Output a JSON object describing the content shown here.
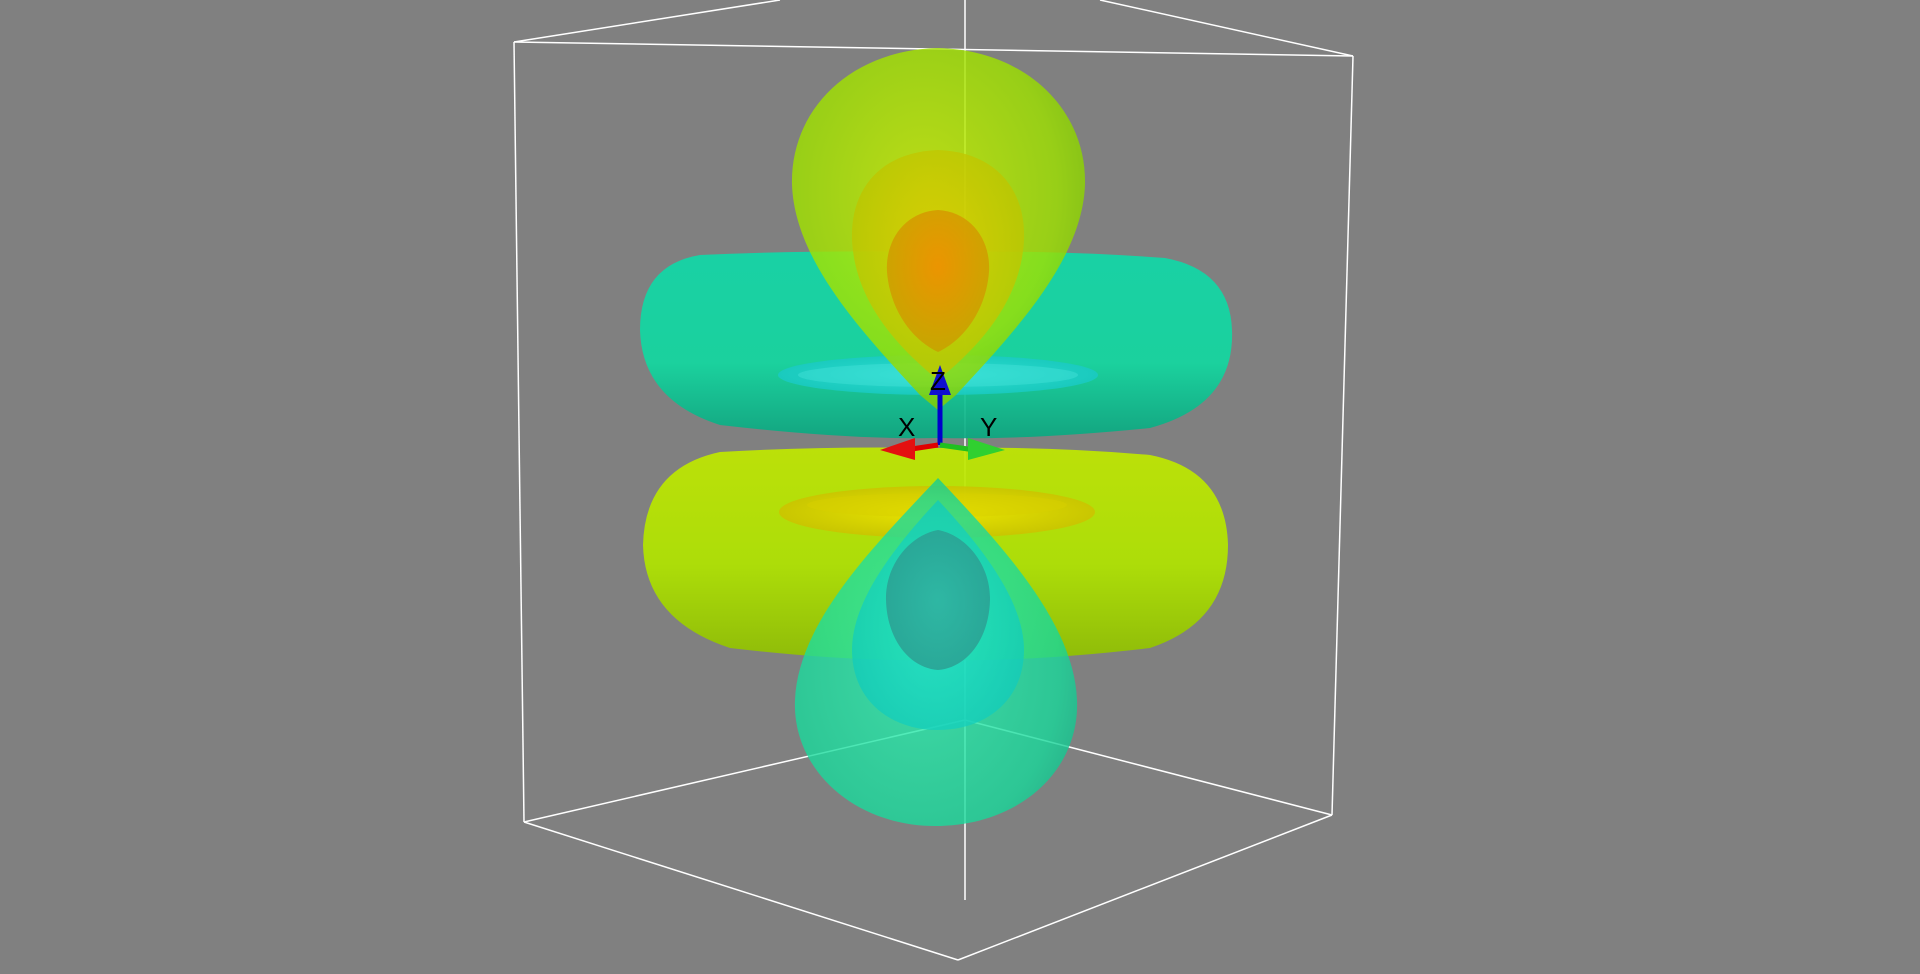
{
  "viewport": {
    "background": "#808080",
    "bounding_box_color": "#ffffff"
  },
  "axes": {
    "x": {
      "label": "X",
      "color": "#e00000"
    },
    "y": {
      "label": "Y",
      "color": "#20c020"
    },
    "z": {
      "label": "Z",
      "color": "#0000cc"
    }
  },
  "isosurfaces": {
    "upper_lobe_color": "#a6e600",
    "lower_lobe_color": "#20e0a0",
    "upper_torus_color": "#10d8a0",
    "lower_torus_color": "#b4e600"
  }
}
